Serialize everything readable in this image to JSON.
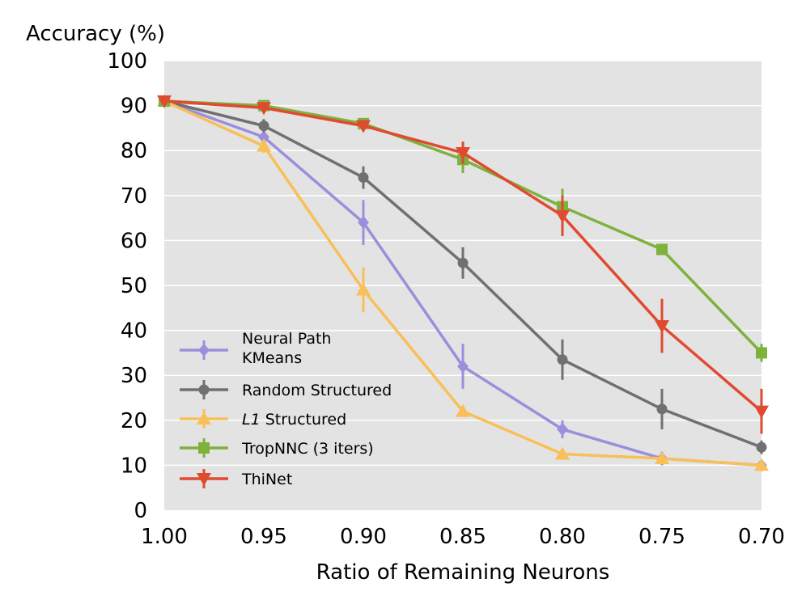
{
  "chart_data": {
    "type": "line",
    "title": "",
    "ylabel": "Accuracy (%)",
    "xlabel": "Ratio of Remaining Neurons",
    "x": [
      1.0,
      0.95,
      0.9,
      0.85,
      0.8,
      0.75,
      0.7
    ],
    "x_tick_labels": [
      "1.00",
      "0.95",
      "0.90",
      "0.85",
      "0.80",
      "0.75",
      "0.70"
    ],
    "xlim": [
      1.0,
      0.7
    ],
    "ylim": [
      0,
      100
    ],
    "y_ticks": [
      0,
      10,
      20,
      30,
      40,
      50,
      60,
      70,
      80,
      90,
      100
    ],
    "grid": true,
    "legend_position": "bottom-left",
    "series": [
      {
        "name": "Neural Path KMeans",
        "legend_lines": [
          "Neural Path",
          "KMeans"
        ],
        "color": "#9b8fdc",
        "marker": "diamond",
        "values": [
          91,
          83,
          64,
          32,
          18,
          11.5,
          10
        ],
        "errors": [
          1.0,
          1.5,
          5.0,
          5.0,
          2.0,
          1.5,
          1.0
        ]
      },
      {
        "name": "Random Structured",
        "legend_lines": [
          "Random Structured"
        ],
        "color": "#707070",
        "marker": "circle",
        "values": [
          91,
          85.5,
          74,
          55,
          33.5,
          22.5,
          14
        ],
        "errors": [
          1.0,
          1.5,
          2.5,
          3.5,
          4.5,
          4.5,
          1.5
        ]
      },
      {
        "name": "L1 Structured",
        "legend_italic": "L1",
        "legend_rest": " Structured",
        "legend_lines": [
          "L1 Structured"
        ],
        "color": "#f9bf58",
        "marker": "triangle-up",
        "values": [
          91,
          81,
          49,
          22,
          12.5,
          11.5,
          10
        ],
        "errors": [
          1.0,
          1.5,
          5.0,
          1.0,
          1.0,
          1.0,
          1.0
        ]
      },
      {
        "name": "TropNNC (3 iters)",
        "legend_lines": [
          "TropNNC (3 iters)"
        ],
        "color": "#7db23d",
        "marker": "square",
        "values": [
          91,
          90,
          86,
          78,
          67.5,
          58,
          35
        ],
        "errors": [
          1.0,
          0.8,
          1.0,
          3.0,
          4.0,
          1.0,
          2.0
        ]
      },
      {
        "name": "ThiNet",
        "legend_lines": [
          "ThiNet"
        ],
        "color": "#e04a30",
        "marker": "triangle-down",
        "values": [
          91,
          89.5,
          85.5,
          79.5,
          65.5,
          41,
          22
        ],
        "errors": [
          1.0,
          0.8,
          1.0,
          2.5,
          4.5,
          6.0,
          5.0
        ]
      }
    ]
  }
}
